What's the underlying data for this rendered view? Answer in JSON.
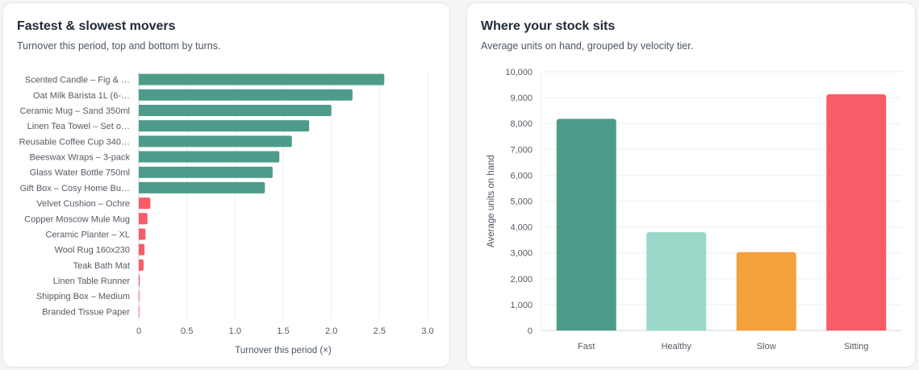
{
  "movers_panel": {
    "title": "Fastest & slowest movers",
    "subtitle": "Turnover this period, top and bottom by turns.",
    "chart_data": {
      "type": "bar",
      "orientation": "horizontal",
      "categories": [
        "Scented Candle – Fig & …",
        "Oat Milk Barista 1L (6-…",
        "Ceramic Mug – Sand 350ml",
        "Linen Tea Towel – Set o…",
        "Reusable Coffee Cup 340…",
        "Beeswax Wraps – 3-pack",
        "Glass Water Bottle 750ml",
        "Gift Box – Cosy Home Bu…",
        "Velvet Cushion – Ochre",
        "Copper Moscow Mule Mug",
        "Ceramic Planter – XL",
        "Wool Rug 160x230",
        "Teak Bath Mat",
        "Linen Table Runner",
        "Shipping Box – Medium",
        "Branded Tissue Paper"
      ],
      "values": [
        2.55,
        2.22,
        2.0,
        1.77,
        1.59,
        1.46,
        1.39,
        1.31,
        0.12,
        0.09,
        0.07,
        0.06,
        0.05,
        0.01,
        0.005,
        0.003
      ],
      "groups": [
        "fast",
        "fast",
        "fast",
        "fast",
        "fast",
        "fast",
        "fast",
        "fast",
        "slow",
        "slow",
        "slow",
        "slow",
        "slow",
        "slow",
        "slow",
        "slow"
      ],
      "colors": {
        "fast": "#4d9c8a",
        "slow": "#f85c67"
      },
      "xlabel": "Turnover this period (×)",
      "xlim": [
        0,
        3.0
      ],
      "xticks": [
        0,
        0.5,
        1.0,
        1.5,
        2.0,
        2.5,
        3.0
      ],
      "xtick_labels": [
        "0",
        "0.5",
        "1.0",
        "1.5",
        "2.0",
        "2.5",
        "3.0"
      ],
      "grid": true,
      "legend": "none"
    }
  },
  "stock_panel": {
    "title": "Where your stock sits",
    "subtitle": "Average units on hand, grouped by velocity tier.",
    "chart_data": {
      "type": "bar",
      "categories": [
        "Fast",
        "Healthy",
        "Slow",
        "Sitting"
      ],
      "values": [
        8180,
        3800,
        3030,
        9130
      ],
      "colors": [
        "#4d9c8a",
        "#9ad8c9",
        "#f2a13b",
        "#f85c67"
      ],
      "ylabel": "Average units on hand",
      "ylim": [
        0,
        10000
      ],
      "yticks": [
        0,
        1000,
        2000,
        3000,
        4000,
        5000,
        6000,
        7000,
        8000,
        9000,
        10000
      ],
      "ytick_labels": [
        "0",
        "1,000",
        "2,000",
        "3,000",
        "4,000",
        "5,000",
        "6,000",
        "7,000",
        "8,000",
        "9,000",
        "10,000"
      ],
      "grid": true,
      "legend": "none"
    }
  }
}
